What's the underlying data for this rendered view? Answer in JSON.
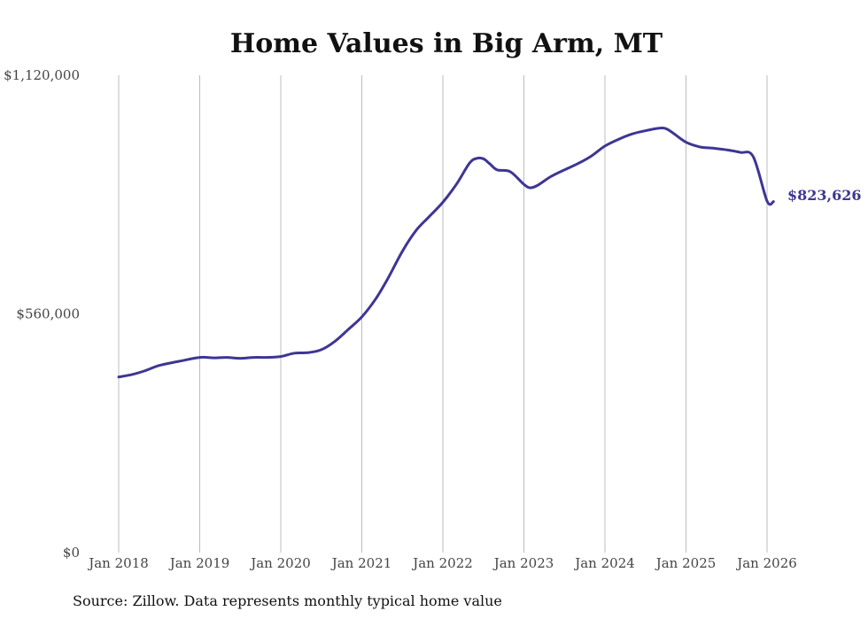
{
  "chart_data": {
    "type": "line",
    "title": "Home Values in Big Arm, MT",
    "ylim": [
      0,
      1120000
    ],
    "y_ticks": [
      {
        "value": 0,
        "label": "$0"
      },
      {
        "value": 560000,
        "label": "$560,000"
      },
      {
        "value": 1120000,
        "label": "$1,120,000"
      }
    ],
    "x_ticks": [
      {
        "value": 2018.0,
        "label": "Jan 2018"
      },
      {
        "value": 2019.0,
        "label": "Jan 2019"
      },
      {
        "value": 2020.0,
        "label": "Jan 2020"
      },
      {
        "value": 2021.0,
        "label": "Jan 2021"
      },
      {
        "value": 2022.0,
        "label": "Jan 2022"
      },
      {
        "value": 2023.0,
        "label": "Jan 2023"
      },
      {
        "value": 2024.0,
        "label": "Jan 2024"
      },
      {
        "value": 2025.0,
        "label": "Jan 2025"
      },
      {
        "value": 2026.0,
        "label": "Jan 2026"
      }
    ],
    "xlim": [
      2018.0,
      2026.0
    ],
    "grid": "vertical",
    "series": [
      {
        "name": "Typical home value",
        "color": "#3d3694",
        "x": [
          2018.0,
          2018.17,
          2018.33,
          2018.5,
          2018.75,
          2019.0,
          2019.17,
          2019.33,
          2019.5,
          2019.67,
          2019.83,
          2020.0,
          2020.17,
          2020.33,
          2020.5,
          2020.67,
          2020.83,
          2021.0,
          2021.17,
          2021.33,
          2021.5,
          2021.67,
          2021.83,
          2022.0,
          2022.17,
          2022.33,
          2022.42,
          2022.5,
          2022.58,
          2022.67,
          2022.83,
          2023.0,
          2023.08,
          2023.17,
          2023.33,
          2023.5,
          2023.67,
          2023.83,
          2024.0,
          2024.17,
          2024.33,
          2024.5,
          2024.67,
          2024.75,
          2024.83,
          2025.0,
          2025.17,
          2025.33,
          2025.5,
          2025.67,
          2025.83,
          2026.0,
          2026.08
        ],
        "values": [
          412000,
          418000,
          427000,
          439000,
          449000,
          458000,
          457000,
          458000,
          456000,
          458000,
          458000,
          460000,
          468000,
          469000,
          476000,
          496000,
          523000,
          553000,
          595000,
          646000,
          707000,
          756000,
          788000,
          822000,
          865000,
          914000,
          925000,
          924000,
          912000,
          898000,
          894000,
          864000,
          856000,
          862000,
          882000,
          898000,
          913000,
          930000,
          954000,
          970000,
          982000,
          990000,
          996000,
          995000,
          986000,
          963000,
          952000,
          949000,
          945000,
          939000,
          929000,
          825000,
          823626
        ]
      }
    ],
    "end_label": "$823,626",
    "source": "Source: Zillow. Data represents monthly typical home value"
  }
}
